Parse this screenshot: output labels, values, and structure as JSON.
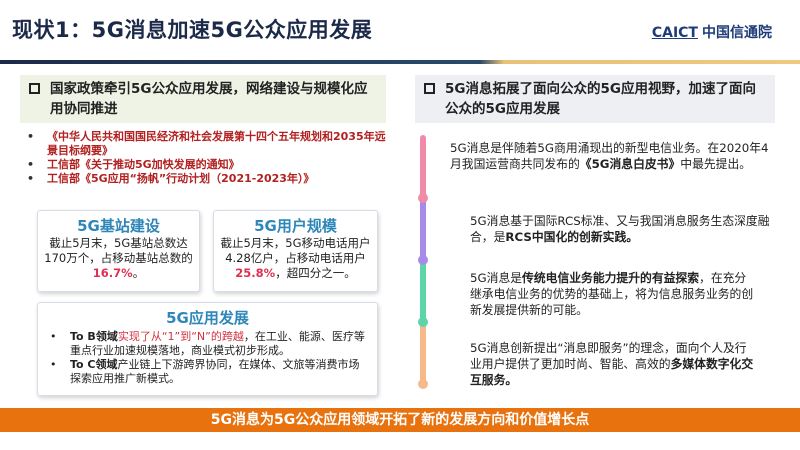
{
  "header": {
    "title": "现状1：5G消息加速5G公众应用发展",
    "logo_en": "CAICT",
    "logo_cn": "中国信通院"
  },
  "left": {
    "heading": "国家政策牵引5G公众应用发展，网络建设与规模化应用协同推进",
    "policies": [
      "《中华人民共和国国民经济和社会发展第十四个五年规划和2035年远景目标纲要》",
      "工信部《关于推动5G加快发展的通知》",
      "工信部《5G应用“扬帆”行动计划（2021-2023年）》"
    ],
    "card_base": {
      "title": "5G基站建设",
      "text": "截止5月末，5G基站总数达170万个，占移动基站总数的",
      "highlight": "16.7%",
      "tail": "。"
    },
    "card_users": {
      "title": "5G用户规模",
      "text": "截止5月末，5G移动电话用户4.28亿户，占移动电话用户",
      "highlight": "25.8%",
      "tail": "，超四分之一。"
    },
    "card_apps": {
      "title": "5G应用发展",
      "b_label": "To B领域",
      "b_highlight": "实现了从“1”到“N”的跨越",
      "b_text": "，在工业、能源、医疗等重点行业加速规模落地，商业模式初步形成。",
      "c_label": "To C领域",
      "c_text": "产业链上下游跨界协同，在媒体、文旅等消费市场探索应用推广新模式。"
    }
  },
  "right": {
    "heading": "5G消息拓展了面向公众的5G应用视野，加速了面向公众的5G应用发展",
    "items": [
      {
        "pre": "5G消息是伴随着5G商用涌现出的新型电信业务。在2020年4月我国运营商共同发布的",
        "bold": "《5G消息白皮书》",
        "post": "中最先提出。"
      },
      {
        "pre": "5G消息基于国际RCS标准、又与我国消息服务生态深度融合，是",
        "bold": "RCS中国化的创新实践。",
        "post": ""
      },
      {
        "pre": "5G消息是",
        "bold": "传统电信业务能力提升的有益探索",
        "post": "，在充分继承电信业务的优势的基础上，将为信息服务业务的创新发展提供新的可能。"
      },
      {
        "pre": "5G消息创新提出“消息即服务”的理念，面向个人及行业用户提供了更加时尚、智能、高效的",
        "bold": "多媒体数字化交互服务。",
        "post": ""
      }
    ],
    "timeline_colors": [
      "#f08aa8",
      "#a88ae8",
      "#5cd6a8",
      "#f5b98a"
    ]
  },
  "banner": {
    "text": "5G消息为5G公众应用领域开拓了新的发展方向和价值增长点",
    "color": "#e8720e"
  }
}
